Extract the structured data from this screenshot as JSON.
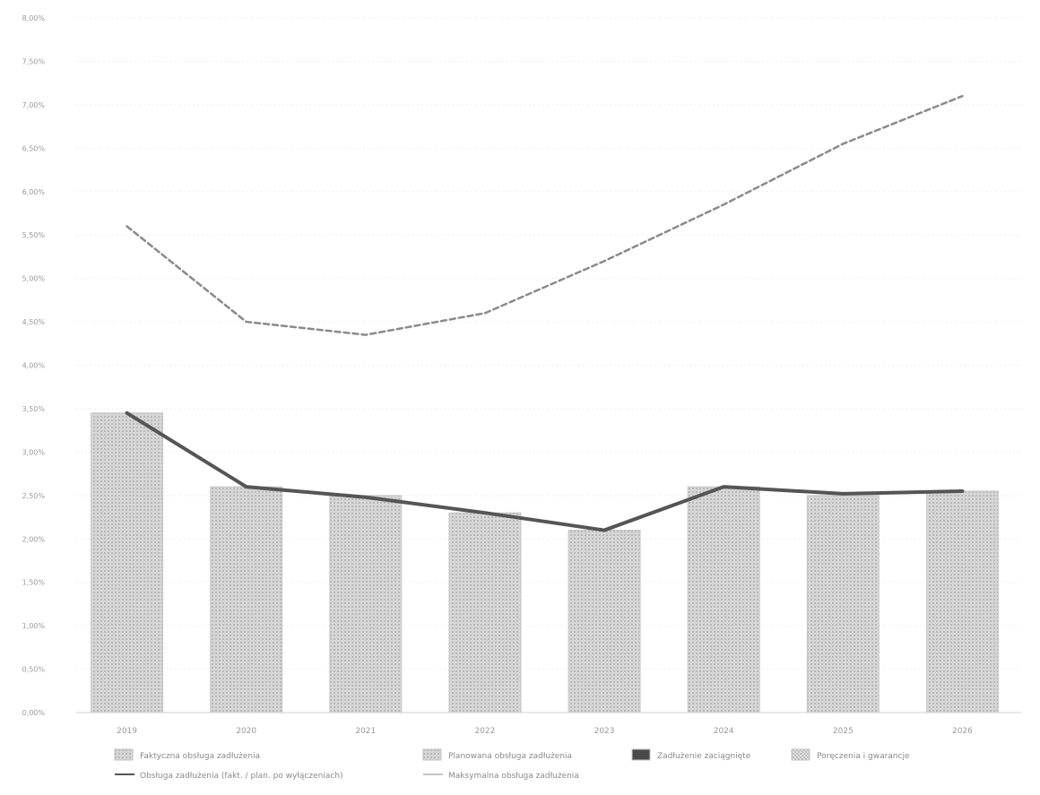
{
  "chart_data": {
    "type": "bar",
    "categories": [
      "2019",
      "2020",
      "2021",
      "2022",
      "2023",
      "2024",
      "2025",
      "2026"
    ],
    "ylim": [
      0,
      8
    ],
    "y_ticks": [
      {
        "value": 0,
        "label": "0,00%"
      },
      {
        "value": 0.5,
        "label": "0,50%"
      },
      {
        "value": 1,
        "label": "1,00%"
      },
      {
        "value": 1.5,
        "label": "1,50%"
      },
      {
        "value": 2,
        "label": "2,00%"
      },
      {
        "value": 2.5,
        "label": "2,50%"
      },
      {
        "value": 3,
        "label": "3,00%"
      },
      {
        "value": 3.5,
        "label": "3,50%"
      },
      {
        "value": 4,
        "label": "4,00%"
      },
      {
        "value": 4.5,
        "label": "4,50%"
      },
      {
        "value": 5,
        "label": "5,00%"
      },
      {
        "value": 5.5,
        "label": "5,50%"
      },
      {
        "value": 6,
        "label": "6,00%"
      },
      {
        "value": 6.5,
        "label": "6,50%"
      },
      {
        "value": 7,
        "label": "7,00%"
      },
      {
        "value": 7.5,
        "label": "7,50%"
      },
      {
        "value": 8,
        "label": "8,00%"
      }
    ],
    "grid": true,
    "legend_position": "bottom",
    "series": [
      {
        "name": "Faktyczna obsługa zadłużenia",
        "kind": "bar",
        "pattern": "dotted-grid",
        "color": "#c4c4c4",
        "values": [
          3.45,
          null,
          null,
          null,
          null,
          null,
          null,
          null
        ]
      },
      {
        "name": "Planowana obsługa zadłużenia",
        "kind": "bar",
        "pattern": "light",
        "color": "#c4c4c4",
        "values": [
          null,
          2.6,
          2.5,
          2.3,
          2.1,
          2.6,
          2.5,
          2.55
        ]
      },
      {
        "name": "Zadłużenie zaciągnięte",
        "kind": "bar",
        "color": "#4a4a4a",
        "values": [
          null,
          null,
          null,
          null,
          null,
          null,
          null,
          null
        ]
      },
      {
        "name": "Poręczenia i gwarancje",
        "kind": "bar",
        "pattern": "checkered",
        "color": "#bdbdbd",
        "values": [
          null,
          null,
          null,
          null,
          null,
          null,
          null,
          null
        ]
      },
      {
        "name": "Obsługa zadłużenia (fakt. / plan. po wyłączeniach)",
        "kind": "line",
        "color": "#555555",
        "values": [
          3.45,
          2.6,
          2.48,
          2.3,
          2.1,
          2.6,
          2.52,
          2.55
        ]
      },
      {
        "name": "Maksymalna obsługa zadłużenia",
        "kind": "line",
        "dashed": true,
        "color": "#8a8a8a",
        "values": [
          5.6,
          4.5,
          4.35,
          4.6,
          5.2,
          5.85,
          6.55,
          7.1
        ]
      }
    ]
  }
}
